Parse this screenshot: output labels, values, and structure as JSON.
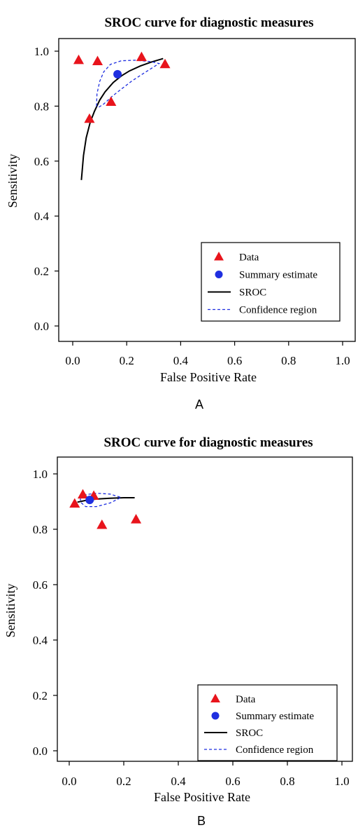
{
  "chart_data": [
    {
      "type": "scatter",
      "panel_label": "A",
      "title": "SROC curve for diagnostic measures",
      "xlabel": "False Positive Rate",
      "ylabel": "Sensitivity",
      "xlim": [
        0.0,
        1.0
      ],
      "ylim": [
        0.0,
        1.0
      ],
      "x_ticks": [
        "0.0",
        "0.2",
        "0.4",
        "0.6",
        "0.8",
        "1.0"
      ],
      "y_ticks": [
        "0.0",
        "0.2",
        "0.4",
        "0.6",
        "0.8",
        "1.0"
      ],
      "grid": false,
      "legend": {
        "position": "bottom-right",
        "entries": [
          "Data",
          "Summary estimate",
          "SROC",
          "Confidence region"
        ]
      },
      "series": [
        {
          "name": "Data",
          "marker": "triangle",
          "color": "#e8141c",
          "points": [
            [
              0.022,
              0.967
            ],
            [
              0.092,
              0.963
            ],
            [
              0.255,
              0.978
            ],
            [
              0.342,
              0.952
            ],
            [
              0.062,
              0.753
            ],
            [
              0.142,
              0.815
            ]
          ]
        },
        {
          "name": "Summary estimate",
          "marker": "circle",
          "color": "#1f2fe0",
          "points": [
            [
              0.166,
              0.916
            ]
          ]
        },
        {
          "name": "SROC",
          "line": "solid",
          "color": "#000000",
          "points": [
            [
              0.032,
              0.531
            ],
            [
              0.04,
              0.62
            ],
            [
              0.05,
              0.685
            ],
            [
              0.065,
              0.742
            ],
            [
              0.08,
              0.78
            ],
            [
              0.1,
              0.822
            ],
            [
              0.12,
              0.852
            ],
            [
              0.15,
              0.886
            ],
            [
              0.18,
              0.91
            ],
            [
              0.21,
              0.928
            ],
            [
              0.25,
              0.946
            ],
            [
              0.29,
              0.96
            ],
            [
              0.335,
              0.973
            ]
          ]
        },
        {
          "name": "Confidence region",
          "line": "dashed",
          "color": "#1f2fe0",
          "points": [
            [
              0.088,
              0.8
            ],
            [
              0.09,
              0.845
            ],
            [
              0.1,
              0.89
            ],
            [
              0.115,
              0.925
            ],
            [
              0.14,
              0.952
            ],
            [
              0.18,
              0.965
            ],
            [
              0.23,
              0.967
            ],
            [
              0.29,
              0.962
            ],
            [
              0.32,
              0.955
            ],
            [
              0.27,
              0.924
            ],
            [
              0.22,
              0.892
            ],
            [
              0.18,
              0.862
            ],
            [
              0.145,
              0.835
            ],
            [
              0.115,
              0.808
            ],
            [
              0.098,
              0.797
            ],
            [
              0.088,
              0.8
            ]
          ]
        }
      ]
    },
    {
      "type": "scatter",
      "panel_label": "B",
      "title": "SROC curve for diagnostic measures",
      "xlabel": "False Positive Rate",
      "ylabel": "Sensitivity",
      "xlim": [
        0.0,
        1.0
      ],
      "ylim": [
        0.0,
        1.0
      ],
      "x_ticks": [
        "0.0",
        "0.2",
        "0.4",
        "0.6",
        "0.8",
        "1.0"
      ],
      "y_ticks": [
        "0.0",
        "0.2",
        "0.4",
        "0.6",
        "0.8",
        "1.0"
      ],
      "grid": false,
      "legend": {
        "position": "bottom-right",
        "entries": [
          "Data",
          "Summary estimate",
          "SROC",
          "Confidence region"
        ]
      },
      "series": [
        {
          "name": "Data",
          "marker": "triangle",
          "color": "#e8141c",
          "points": [
            [
              0.02,
              0.892
            ],
            [
              0.05,
              0.925
            ],
            [
              0.09,
              0.92
            ],
            [
              0.12,
              0.815
            ],
            [
              0.245,
              0.835
            ]
          ]
        },
        {
          "name": "Summary estimate",
          "marker": "circle",
          "color": "#1f2fe0",
          "points": [
            [
              0.075,
              0.906
            ]
          ]
        },
        {
          "name": "SROC",
          "line": "solid",
          "color": "#000000",
          "points": [
            [
              0.03,
              0.898
            ],
            [
              0.06,
              0.904
            ],
            [
              0.1,
              0.909
            ],
            [
              0.15,
              0.912
            ],
            [
              0.2,
              0.914
            ],
            [
              0.24,
              0.914
            ]
          ]
        },
        {
          "name": "Confidence region",
          "line": "dashed",
          "color": "#1f2fe0",
          "points": [
            [
              0.04,
              0.91
            ],
            [
              0.06,
              0.925
            ],
            [
              0.1,
              0.93
            ],
            [
              0.15,
              0.927
            ],
            [
              0.19,
              0.915
            ],
            [
              0.15,
              0.895
            ],
            [
              0.1,
              0.882
            ],
            [
              0.06,
              0.882
            ],
            [
              0.045,
              0.895
            ],
            [
              0.04,
              0.91
            ]
          ]
        }
      ]
    }
  ]
}
